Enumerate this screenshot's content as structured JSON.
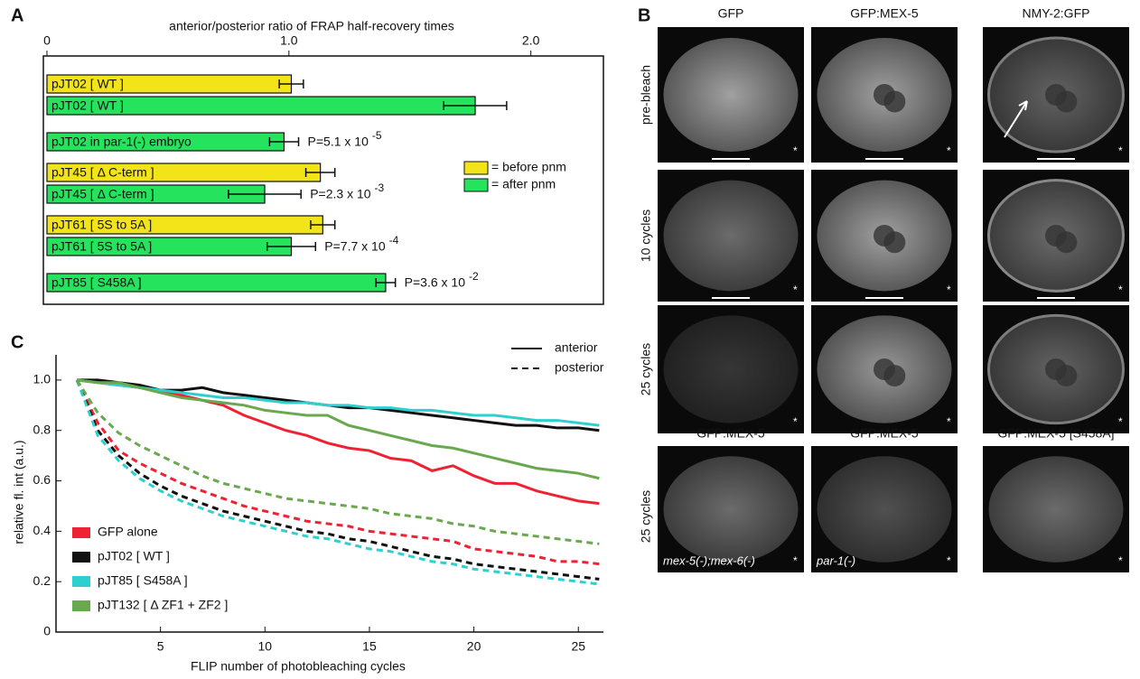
{
  "panel_labels": [
    "A",
    "B",
    "C"
  ],
  "chart_data": [
    {
      "type": "bar",
      "orientation": "horizontal",
      "xlabel": "anterior/posterior ratio of FRAP half-recovery times",
      "xlim": [
        0,
        2.3
      ],
      "xticks": [
        0,
        {
          "value": 1,
          "label": "1.0"
        },
        {
          "value": 2,
          "label": "2.0"
        }
      ],
      "categories": [
        "pJT02 [ WT ]",
        "pJT02 [ WT ]",
        "pJT02 in par-1(-) embryo",
        "pJT45 [ Δ C-term ]",
        "pJT45 [ Δ C-term ]",
        "pJT61 [ 5S to 5A ]",
        "pJT61 [ 5S to 5A ]",
        "pJT85 [ S458A ]"
      ],
      "values": [
        1.01,
        1.77,
        0.98,
        1.13,
        0.9,
        1.14,
        1.01,
        1.4
      ],
      "errors": [
        0.05,
        0.13,
        0.06,
        0.06,
        0.15,
        0.05,
        0.1,
        0.04
      ],
      "colors": [
        "#f2e419",
        "#25e35c",
        "#25e35c",
        "#f2e419",
        "#25e35c",
        "#f2e419",
        "#25e35c",
        "#25e35c"
      ],
      "p_values": [
        null,
        null,
        {
          "text": "P=5.1 x 10",
          "exponent": "-5"
        },
        null,
        {
          "text": "P=2.3 x 10",
          "exponent": "-3"
        },
        null,
        {
          "text": "P=7.7 x 10",
          "exponent": "-4"
        },
        {
          "text": "P=3.6 x 10",
          "exponent": "-2"
        }
      ],
      "legend": [
        {
          "label": "= before pnm",
          "color": "#f2e419"
        },
        {
          "label": "= after pnm",
          "color": "#25e35c"
        }
      ]
    },
    {
      "type": "line",
      "xlabel": "FLIP  number of photobleaching cycles",
      "ylabel": "relative fl. int (a.u.)",
      "x": [
        1,
        2,
        3,
        4,
        5,
        6,
        7,
        8,
        9,
        10,
        11,
        12,
        13,
        14,
        15,
        16,
        17,
        18,
        19,
        20,
        21,
        22,
        23,
        24,
        25,
        26
      ],
      "xlim": [
        0,
        26.2
      ],
      "xticks": [
        5,
        10,
        15,
        20,
        25
      ],
      "ylim": [
        0,
        1.1
      ],
      "yticks": [
        0,
        0.2,
        0.4,
        0.6,
        0.8,
        {
          "value": 1,
          "label": "1.0"
        }
      ],
      "line_styles": [
        {
          "label": "anterior",
          "dashed": false
        },
        {
          "label": "posterior",
          "dashed": true
        }
      ],
      "series": [
        {
          "name": "GFP alone",
          "color": "#ee2233",
          "anterior": [
            1.0,
            0.99,
            0.98,
            0.97,
            0.96,
            0.94,
            0.92,
            0.9,
            0.86,
            0.83,
            0.8,
            0.78,
            0.75,
            0.73,
            0.72,
            0.69,
            0.68,
            0.64,
            0.66,
            0.62,
            0.59,
            0.59,
            0.56,
            0.54,
            0.52,
            0.51
          ],
          "posterior": [
            1.0,
            0.83,
            0.72,
            0.67,
            0.63,
            0.59,
            0.56,
            0.53,
            0.5,
            0.48,
            0.46,
            0.44,
            0.43,
            0.42,
            0.4,
            0.39,
            0.38,
            0.37,
            0.36,
            0.33,
            0.32,
            0.31,
            0.3,
            0.28,
            0.28,
            0.27
          ]
        },
        {
          "name": "pJT02 [ WT ]",
          "color": "#111111",
          "anterior": [
            1.0,
            1.0,
            0.99,
            0.98,
            0.96,
            0.96,
            0.97,
            0.95,
            0.94,
            0.93,
            0.92,
            0.91,
            0.9,
            0.89,
            0.89,
            0.88,
            0.87,
            0.86,
            0.85,
            0.84,
            0.83,
            0.82,
            0.82,
            0.81,
            0.81,
            0.8
          ],
          "posterior": [
            1.0,
            0.8,
            0.7,
            0.63,
            0.58,
            0.54,
            0.51,
            0.48,
            0.46,
            0.44,
            0.42,
            0.4,
            0.39,
            0.37,
            0.36,
            0.34,
            0.32,
            0.3,
            0.29,
            0.27,
            0.26,
            0.25,
            0.24,
            0.23,
            0.22,
            0.21
          ]
        },
        {
          "name": "pJT85 [ S458A ]",
          "color": "#2fcfcf",
          "anterior": [
            1.0,
            0.99,
            0.98,
            0.97,
            0.96,
            0.95,
            0.94,
            0.93,
            0.93,
            0.92,
            0.91,
            0.91,
            0.9,
            0.9,
            0.89,
            0.89,
            0.88,
            0.88,
            0.87,
            0.86,
            0.86,
            0.85,
            0.84,
            0.84,
            0.83,
            0.82
          ],
          "posterior": [
            1.0,
            0.78,
            0.68,
            0.61,
            0.56,
            0.52,
            0.49,
            0.46,
            0.44,
            0.42,
            0.4,
            0.38,
            0.37,
            0.35,
            0.33,
            0.32,
            0.3,
            0.28,
            0.27,
            0.25,
            0.24,
            0.23,
            0.22,
            0.21,
            0.2,
            0.19
          ]
        },
        {
          "name": "pJT132 [ Δ ZF1 + ZF2 ]",
          "color": "#6aa84f",
          "anterior": [
            1.0,
            0.99,
            0.99,
            0.97,
            0.95,
            0.93,
            0.92,
            0.91,
            0.9,
            0.88,
            0.87,
            0.86,
            0.86,
            0.82,
            0.8,
            0.78,
            0.76,
            0.74,
            0.73,
            0.71,
            0.69,
            0.67,
            0.65,
            0.64,
            0.63,
            0.61
          ],
          "posterior": [
            1.0,
            0.87,
            0.79,
            0.74,
            0.7,
            0.66,
            0.62,
            0.59,
            0.57,
            0.55,
            0.53,
            0.52,
            0.51,
            0.5,
            0.49,
            0.47,
            0.46,
            0.45,
            0.43,
            0.42,
            0.4,
            0.39,
            0.38,
            0.37,
            0.36,
            0.35
          ]
        }
      ]
    }
  ],
  "microscopy": {
    "columns": [
      "GFP",
      "GFP:MEX-5",
      "NMY-2:GFP"
    ],
    "rows": [
      "pre-bleach",
      "10 cycles",
      "25 cycles"
    ],
    "bottom_row": {
      "label": "25 cycles",
      "columns": [
        "GFP:MEX-5",
        "GFP:MEX-5",
        "GFP:MEX-5 [S458A]"
      ],
      "genotypes": [
        "mex-5(-);mex-6(-)",
        "par-1(-)"
      ]
    },
    "marker": "*"
  }
}
